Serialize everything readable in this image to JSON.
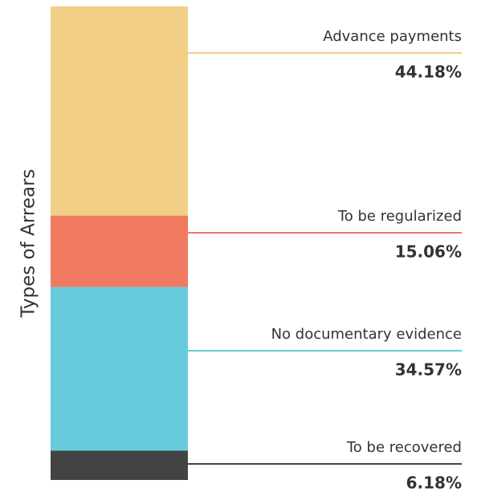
{
  "chart_data": {
    "type": "bar",
    "stacked": true,
    "y_label": "Types of Arrears",
    "series": [
      {
        "name": "Advance payments",
        "color": "#f2cf87",
        "values": [
          44.18
        ],
        "value_labels": [
          "44.18%"
        ]
      },
      {
        "name": "To be regularized",
        "color": "#ef7a60",
        "values": [
          15.06
        ],
        "value_labels": [
          "15.06%"
        ]
      },
      {
        "name": "No documentary evidence",
        "color": "#68cbdb",
        "values": [
          34.57
        ],
        "value_labels": [
          "34.57%"
        ]
      },
      {
        "name": "To be recovered",
        "color": "#434343",
        "values": [
          6.18
        ],
        "value_labels": [
          "6.18%"
        ]
      }
    ]
  }
}
